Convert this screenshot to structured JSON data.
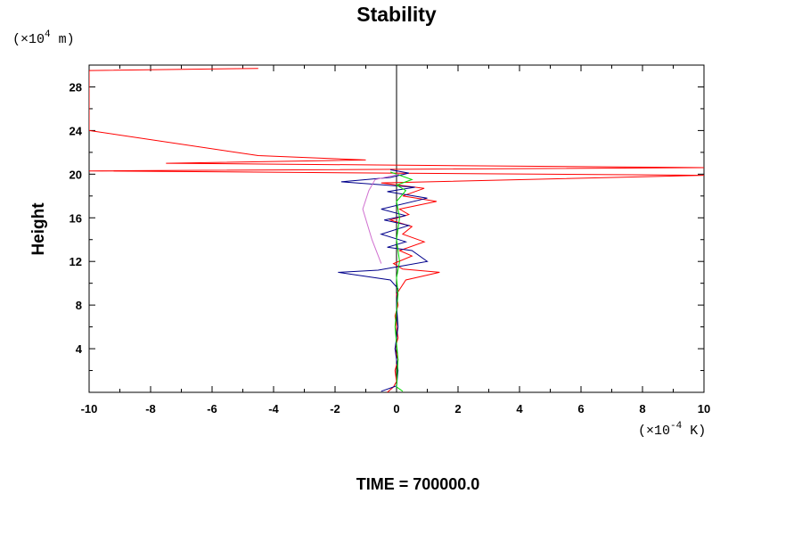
{
  "chart_data": {
    "type": "line",
    "title": "Stability",
    "xlabel": "",
    "ylabel": "Height",
    "x_unit": {
      "prefix": "(×10",
      "exp": "-4",
      "suffix": " K)"
    },
    "y_unit": {
      "prefix": "(×10",
      "exp": "4",
      "suffix": " m)"
    },
    "xlim": [
      -10,
      10
    ],
    "ylim": [
      0,
      30
    ],
    "x_ticks": [
      -10,
      -8,
      -6,
      -4,
      -2,
      0,
      2,
      4,
      6,
      8,
      10
    ],
    "y_ticks": [
      4,
      8,
      12,
      16,
      20,
      24,
      28
    ],
    "grid": false,
    "series": [
      {
        "color": "#ff0000",
        "points": [
          [
            -0.3,
            0
          ],
          [
            -0.1,
            0.5
          ],
          [
            0,
            1
          ],
          [
            -0.05,
            2
          ],
          [
            0.05,
            3
          ],
          [
            -0.05,
            4
          ],
          [
            0.05,
            5
          ],
          [
            0,
            6
          ],
          [
            -0.05,
            7
          ],
          [
            0.05,
            8
          ],
          [
            0,
            9
          ],
          [
            0.3,
            10.3
          ],
          [
            1.4,
            11
          ],
          [
            0.2,
            11.3
          ],
          [
            -0.1,
            11.8
          ],
          [
            0.5,
            12.5
          ],
          [
            0.1,
            13
          ],
          [
            0.9,
            13.8
          ],
          [
            0.2,
            14.5
          ],
          [
            0.5,
            15.2
          ],
          [
            -0.2,
            15.8
          ],
          [
            0.4,
            16.3
          ],
          [
            0.1,
            16.8
          ],
          [
            1.3,
            17.5
          ],
          [
            0.2,
            18
          ],
          [
            0.9,
            18.7
          ],
          [
            -0.5,
            19.2
          ],
          [
            10,
            19.9
          ],
          [
            -10,
            20.3
          ],
          [
            10,
            20.6
          ],
          [
            -7.5,
            21
          ],
          [
            -1,
            21.3
          ],
          [
            -4.5,
            21.7
          ],
          [
            -10,
            24
          ],
          [
            -10,
            29.5
          ],
          [
            -4.5,
            29.7
          ]
        ]
      },
      {
        "color": "#00008b",
        "points": [
          [
            -0.5,
            0.1
          ],
          [
            0,
            0.6
          ],
          [
            0.05,
            2
          ],
          [
            -0.05,
            4
          ],
          [
            0.05,
            6
          ],
          [
            0,
            8
          ],
          [
            0.05,
            9.5
          ],
          [
            -0.2,
            10.3
          ],
          [
            -1.9,
            11
          ],
          [
            -0.6,
            11.2
          ],
          [
            0.2,
            11.6
          ],
          [
            1,
            12
          ],
          [
            0.5,
            13
          ],
          [
            -0.3,
            13.3
          ],
          [
            0.3,
            13.8
          ],
          [
            -0.5,
            14.5
          ],
          [
            0.4,
            15.3
          ],
          [
            -0.4,
            15.8
          ],
          [
            0.3,
            16.2
          ],
          [
            -0.5,
            16.8
          ],
          [
            1,
            17.8
          ],
          [
            -0.3,
            18.4
          ],
          [
            0.6,
            18.8
          ],
          [
            -1.8,
            19.3
          ],
          [
            -0.2,
            19.7
          ],
          [
            0.4,
            20.1
          ],
          [
            -0.2,
            20.4
          ]
        ]
      },
      {
        "color": "#00dd00",
        "points": [
          [
            0.2,
            0.1
          ],
          [
            0,
            0.5
          ],
          [
            0.05,
            3
          ],
          [
            -0.05,
            6
          ],
          [
            0.05,
            9
          ],
          [
            0,
            10.5
          ],
          [
            0.1,
            12
          ],
          [
            0,
            14
          ],
          [
            0.1,
            16
          ],
          [
            0,
            17.5
          ],
          [
            0.3,
            18.5
          ],
          [
            0,
            19
          ],
          [
            0.5,
            19.5
          ],
          [
            -0.2,
            20.2
          ]
        ]
      },
      {
        "color": "#d070d0",
        "points": [
          [
            -0.5,
            11.8
          ],
          [
            -0.8,
            14
          ],
          [
            -1.1,
            16.8
          ],
          [
            -0.9,
            18.5
          ],
          [
            -0.7,
            19.5
          ],
          [
            0.1,
            20
          ]
        ]
      }
    ]
  },
  "footer": {
    "time_label": "TIME = 700000.0"
  }
}
